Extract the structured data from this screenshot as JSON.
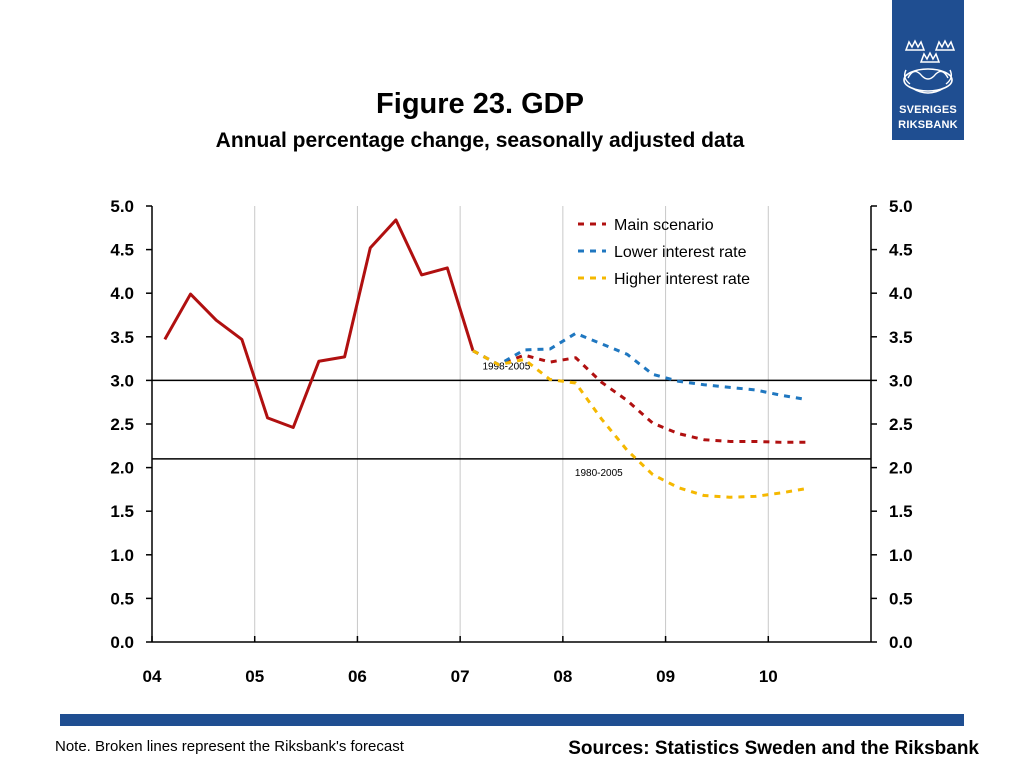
{
  "header": {
    "title": "Figure 23. GDP",
    "subtitle": "Annual percentage change, seasonally adjusted data"
  },
  "logo": {
    "line1": "SVERIGES",
    "line2": "RIKSBANK"
  },
  "footer": {
    "note": "Note. Broken lines represent the Riksbank's forecast",
    "sources": "Sources: Statistics Sweden and the Riksbank"
  },
  "colors": {
    "main": "#b01010",
    "lower": "#1f77c0",
    "higher": "#f5b800",
    "banner": "#1f4e91"
  },
  "chart_data": {
    "type": "line",
    "title": "Figure 23. GDP",
    "subtitle": "Annual percentage change, seasonally adjusted data",
    "xlabel": "",
    "ylabel": "",
    "x_ticks": [
      "04",
      "05",
      "06",
      "07",
      "08",
      "09",
      "10"
    ],
    "xlim": [
      2004.0,
      2011.0
    ],
    "ylim": [
      0.0,
      5.0
    ],
    "y_ticks": [
      "0.0",
      "0.5",
      "1.0",
      "1.5",
      "2.0",
      "2.5",
      "3.0",
      "3.5",
      "4.0",
      "4.5",
      "5.0"
    ],
    "grid": "vertical",
    "legend_position": "top-right",
    "series": [
      {
        "name": "",
        "style": "solid",
        "color": "#b01010",
        "x": [
          2004.125,
          2004.375,
          2004.625,
          2004.875,
          2005.125,
          2005.375,
          2005.625,
          2005.875,
          2006.125,
          2006.375,
          2006.625,
          2006.875,
          2007.125
        ],
        "y": [
          3.47,
          3.99,
          3.69,
          3.47,
          2.57,
          2.46,
          3.22,
          3.27,
          4.52,
          4.84,
          4.21,
          4.29,
          3.34
        ]
      },
      {
        "name": "Main scenario",
        "style": "dashed",
        "color": "#b01010",
        "x": [
          2007.125,
          2007.375,
          2007.625,
          2007.875,
          2008.125,
          2008.375,
          2008.625,
          2008.875,
          2009.125,
          2009.375,
          2009.625,
          2009.875,
          2010.125,
          2010.375
        ],
        "y": [
          3.34,
          3.18,
          3.29,
          3.21,
          3.26,
          2.98,
          2.77,
          2.51,
          2.39,
          2.32,
          2.3,
          2.3,
          2.29,
          2.29
        ]
      },
      {
        "name": "Lower interest rate",
        "style": "dashed",
        "color": "#1f77c0",
        "x": [
          2007.125,
          2007.375,
          2007.625,
          2007.875,
          2008.125,
          2008.375,
          2008.625,
          2008.875,
          2009.125,
          2009.375,
          2009.625,
          2009.875,
          2010.125,
          2010.375
        ],
        "y": [
          3.34,
          3.18,
          3.35,
          3.36,
          3.54,
          3.42,
          3.3,
          3.07,
          2.99,
          2.95,
          2.92,
          2.89,
          2.83,
          2.78
        ]
      },
      {
        "name": "Higher interest rate",
        "style": "dashed",
        "color": "#f5b800",
        "x": [
          2007.125,
          2007.375,
          2007.625,
          2007.875,
          2008.125,
          2008.375,
          2008.625,
          2008.875,
          2009.125,
          2009.375,
          2009.625,
          2009.875,
          2010.125,
          2010.375
        ],
        "y": [
          3.34,
          3.18,
          3.24,
          3.01,
          2.97,
          2.56,
          2.2,
          1.92,
          1.77,
          1.68,
          1.66,
          1.67,
          1.71,
          1.76
        ]
      }
    ],
    "reference_lines": [
      {
        "y": 3.0,
        "label": "1998-2005",
        "label_x": 2007.45
      },
      {
        "y": 2.1,
        "label": "1980-2005",
        "label_x": 2008.35
      }
    ]
  }
}
